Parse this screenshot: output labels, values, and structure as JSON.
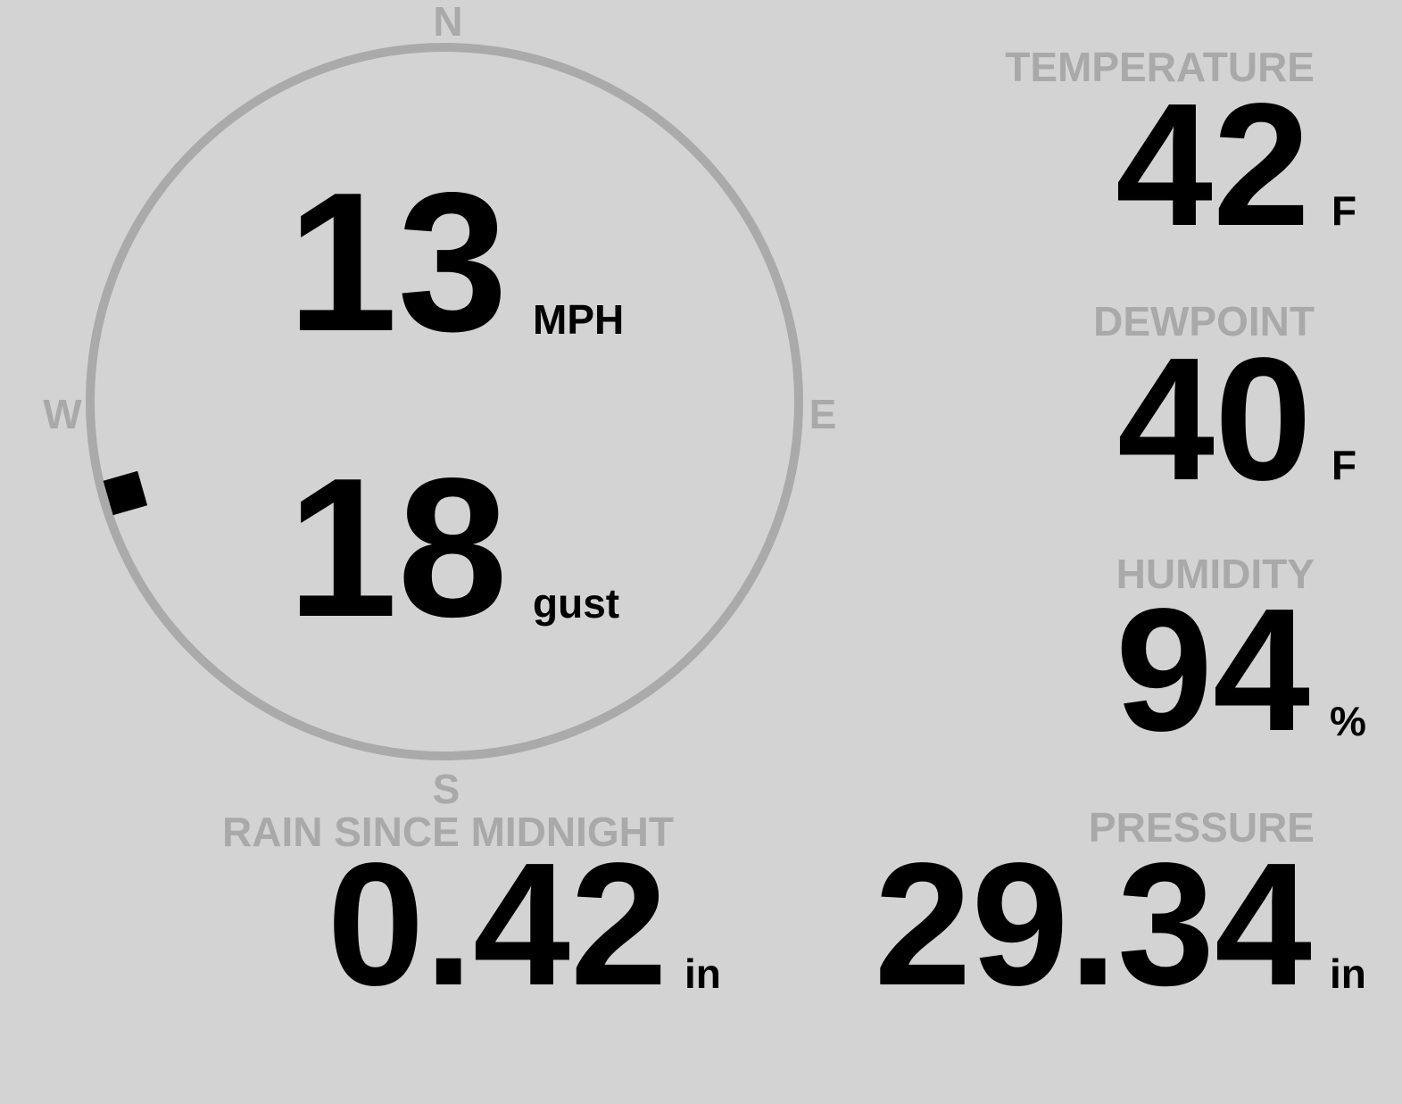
{
  "colors": {
    "background": "#d3d3d3",
    "label": "#a9a9a9",
    "value": "#000000",
    "ring": "#aaaaaa"
  },
  "compass": {
    "n": "N",
    "e": "E",
    "s": "S",
    "w": "W"
  },
  "wind": {
    "speed": "13",
    "speed_unit": "MPH",
    "gust": "18",
    "gust_unit": "gust",
    "direction_deg": 254
  },
  "temperature": {
    "label": "TEMPERATURE",
    "value": "42",
    "unit": "F"
  },
  "dewpoint": {
    "label": "DEWPOINT",
    "value": "40",
    "unit": "F"
  },
  "humidity": {
    "label": "HUMIDITY",
    "value": "94",
    "unit": "%"
  },
  "rain": {
    "label": "RAIN SINCE MIDNIGHT",
    "value": "0.42",
    "unit": "in"
  },
  "pressure": {
    "label": "PRESSURE",
    "value": "29.34",
    "unit": "in"
  }
}
